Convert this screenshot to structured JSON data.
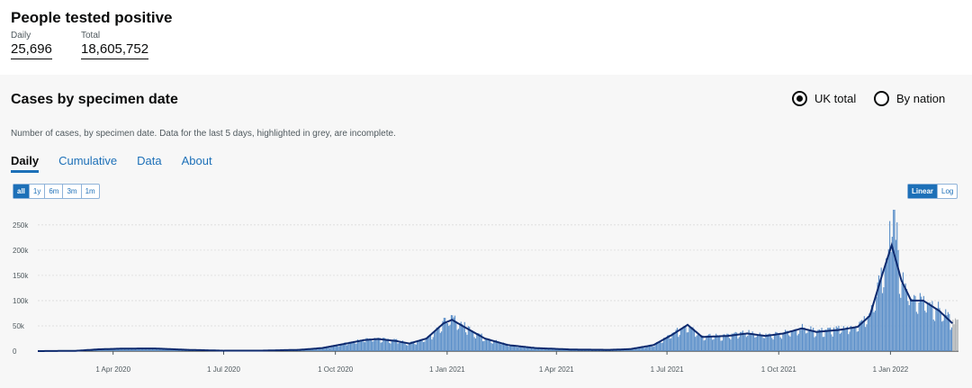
{
  "header": {
    "title": "People tested positive",
    "daily_label": "Daily",
    "daily_value": "25,696",
    "total_label": "Total",
    "total_value": "18,605,752"
  },
  "card": {
    "title": "Cases by specimen date",
    "radio_uk": "UK total",
    "radio_nation": "By nation",
    "description": "Number of cases, by specimen date. Data for the last 5 days, highlighted in grey, are incomplete."
  },
  "tabs": [
    "Daily",
    "Cumulative",
    "Data",
    "About"
  ],
  "time_filters": [
    "all",
    "1y",
    "6m",
    "3m",
    "1m"
  ],
  "scale_toggle": [
    "Linear",
    "Log"
  ],
  "colors": {
    "bar": "#5b8fc9",
    "line": "#0e2a6e",
    "incomplete": "#b1b4b6",
    "accent": "#1d70b8"
  },
  "chart_data": {
    "type": "bar",
    "y_ticks": [
      "0",
      "50k",
      "100k",
      "150k",
      "200k",
      "250k"
    ],
    "y_values": [
      0,
      50000,
      100000,
      150000,
      200000,
      250000
    ],
    "ylim": [
      0,
      280000
    ],
    "x_ticks": [
      "1 Apr 2020",
      "1 Jul 2020",
      "1 Oct 2020",
      "1 Jan 2021",
      "1 Apr 2021",
      "1 Jul 2021",
      "1 Oct 2021",
      "1 Jan 2022"
    ],
    "xlim": [
      "2020-01-30",
      "2022-02-26"
    ],
    "grid": true,
    "series": [
      {
        "type": "line",
        "points": [
          [
            "2020-01-30",
            0
          ],
          [
            "2020-03-01",
            500
          ],
          [
            "2020-03-20",
            3500
          ],
          [
            "2020-04-10",
            5000
          ],
          [
            "2020-05-05",
            5200
          ],
          [
            "2020-06-01",
            2500
          ],
          [
            "2020-07-01",
            800
          ],
          [
            "2020-08-01",
            900
          ],
          [
            "2020-09-01",
            2500
          ],
          [
            "2020-09-20",
            6000
          ],
          [
            "2020-10-10",
            15000
          ],
          [
            "2020-10-25",
            22000
          ],
          [
            "2020-11-05",
            24000
          ],
          [
            "2020-11-20",
            20000
          ],
          [
            "2020-12-01",
            15000
          ],
          [
            "2020-12-15",
            25000
          ],
          [
            "2020-12-29",
            55000
          ],
          [
            "2021-01-05",
            62000
          ],
          [
            "2021-01-15",
            48000
          ],
          [
            "2021-02-01",
            25000
          ],
          [
            "2021-02-20",
            12000
          ],
          [
            "2021-03-15",
            6000
          ],
          [
            "2021-04-15",
            3000
          ],
          [
            "2021-05-15",
            2500
          ],
          [
            "2021-06-01",
            4000
          ],
          [
            "2021-06-20",
            12000
          ],
          [
            "2021-07-05",
            32000
          ],
          [
            "2021-07-18",
            52000
          ],
          [
            "2021-07-30",
            28000
          ],
          [
            "2021-08-20",
            30000
          ],
          [
            "2021-09-05",
            35000
          ],
          [
            "2021-09-20",
            30000
          ],
          [
            "2021-10-05",
            35000
          ],
          [
            "2021-10-20",
            45000
          ],
          [
            "2021-11-01",
            38000
          ],
          [
            "2021-11-20",
            42000
          ],
          [
            "2021-12-05",
            48000
          ],
          [
            "2021-12-15",
            70000
          ],
          [
            "2021-12-25",
            150000
          ],
          [
            "2022-01-02",
            210000
          ],
          [
            "2022-01-10",
            140000
          ],
          [
            "2022-01-18",
            100000
          ],
          [
            "2022-01-28",
            100000
          ],
          [
            "2022-02-10",
            80000
          ],
          [
            "2022-02-21",
            55000
          ]
        ]
      }
    ],
    "incomplete_days": 5
  }
}
